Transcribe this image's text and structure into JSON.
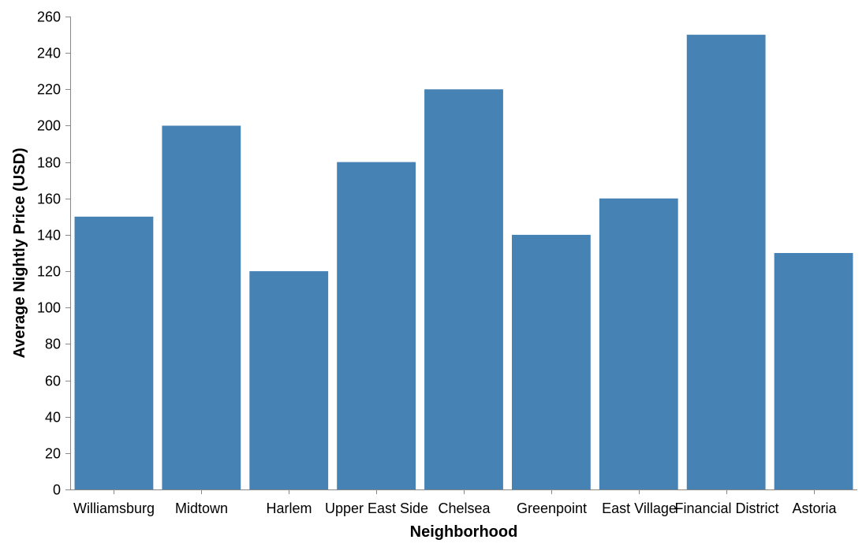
{
  "chart_data": {
    "type": "bar",
    "title": "",
    "xlabel": "Neighborhood",
    "ylabel": "Average Nightly Price (USD)",
    "categories": [
      "Williamsburg",
      "Midtown",
      "Harlem",
      "Upper East Side",
      "Chelsea",
      "Greenpoint",
      "East Village",
      "Financial District",
      "Astoria"
    ],
    "values": [
      150,
      200,
      120,
      180,
      220,
      140,
      160,
      250,
      130
    ],
    "ylim": [
      0,
      260
    ],
    "yticks": [
      0,
      20,
      40,
      60,
      80,
      100,
      120,
      140,
      160,
      180,
      200,
      220,
      240,
      260
    ],
    "grid": false,
    "colors": {
      "bar": "#4682b4",
      "axis": "#888888",
      "text": "#000000"
    }
  }
}
